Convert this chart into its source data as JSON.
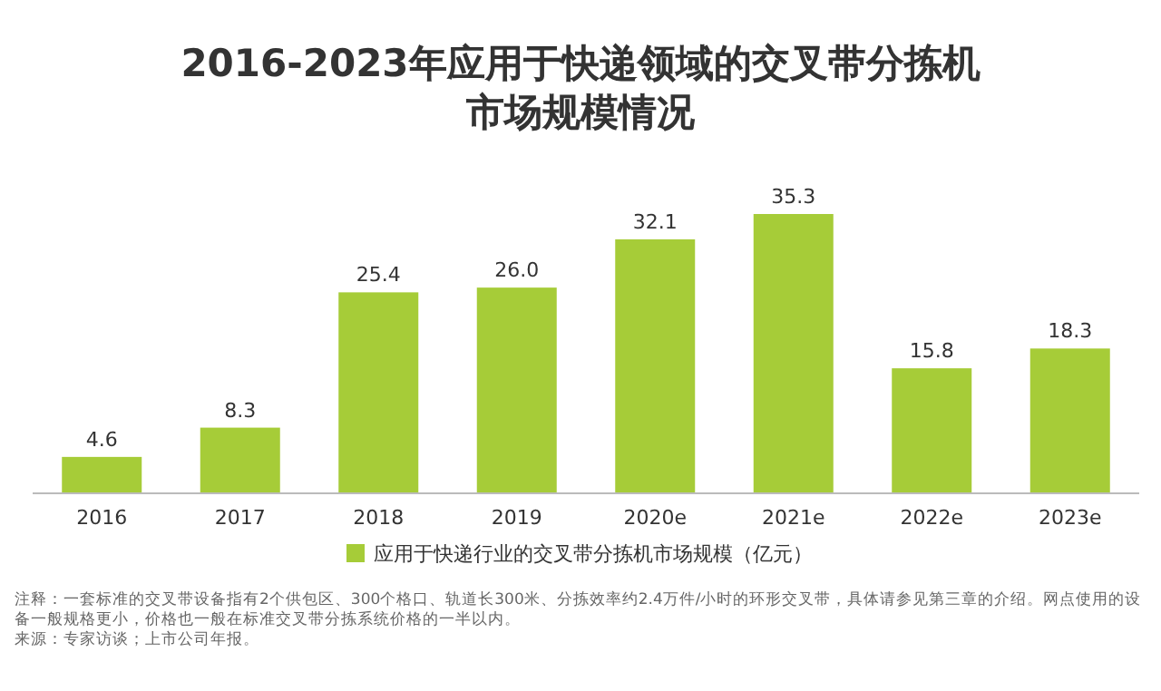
{
  "chart_data": {
    "type": "bar",
    "title": "2016-2023年应用于快递领域的交叉带分拣机市场规模情况",
    "categories": [
      "2016",
      "2017",
      "2018",
      "2019",
      "2020e",
      "2021e",
      "2022e",
      "2023e"
    ],
    "series": [
      {
        "name": "应用于快递行业的交叉带分拣机市场规模（亿元）",
        "color": "#a6cc38",
        "values": [
          4.6,
          8.3,
          25.4,
          26.0,
          32.1,
          35.3,
          15.8,
          18.3
        ],
        "value_labels": [
          "4.6",
          "8.3",
          "25.4",
          "26.0",
          "32.1",
          "35.3",
          "15.8",
          "18.3"
        ]
      }
    ],
    "legend": "bottom",
    "annotations": [
      "注释：一套标准的交叉带设备指有2个供包区、300个格口、轨道长300米、分拣效率约2.4万件/小时的环形交叉带，具体请参见第三章的介绍。网点使用的设备一般规格更小，价格也一般在标准交叉带分拣系统价格的一半以内。",
      "来源：专家访谈；上市公司年报。"
    ]
  }
}
